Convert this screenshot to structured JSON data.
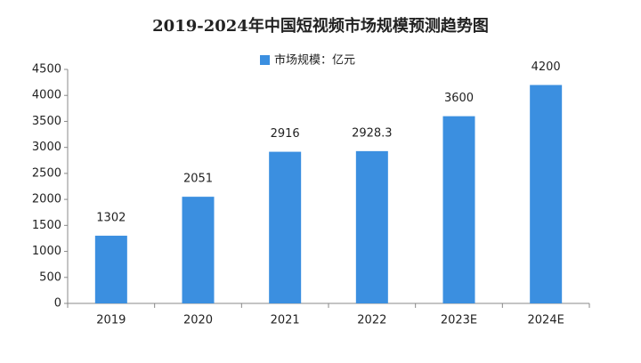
{
  "chart_data": {
    "type": "bar",
    "title": "2019-2024年中国短视频市场规模预测趋势图",
    "categories": [
      "2019",
      "2020",
      "2021",
      "2022",
      "2023E",
      "2024E"
    ],
    "series": [
      {
        "name": "市场规模：亿元",
        "color": "#3b8fe0",
        "values": [
          1302,
          2051,
          2916,
          2928.3,
          3600,
          4200
        ]
      }
    ],
    "ylim": [
      0,
      4500
    ],
    "yticks": [
      0,
      500,
      1000,
      1500,
      2000,
      2500,
      3000,
      3500,
      4000,
      4500
    ],
    "grid": false
  }
}
